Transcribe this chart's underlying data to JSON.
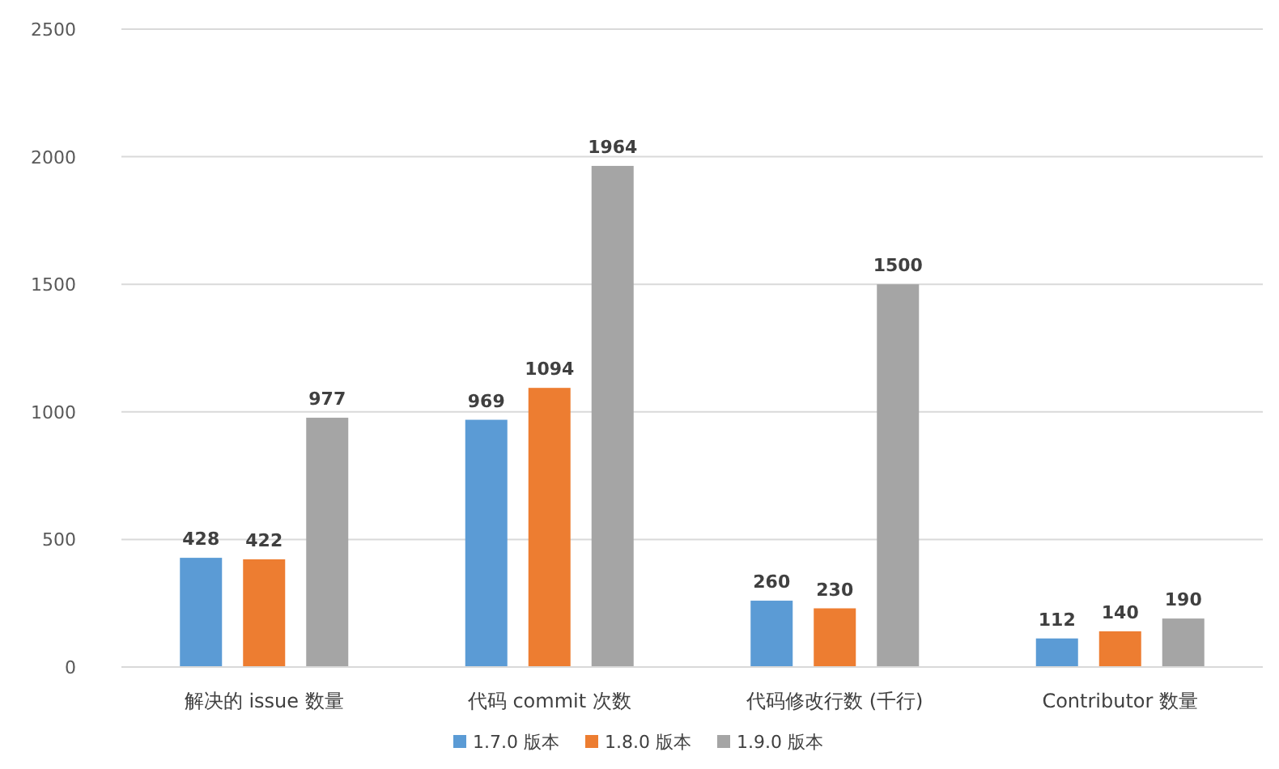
{
  "chart_data": {
    "type": "bar",
    "categories": [
      "解决的 issue 数量",
      "代码 commit 次数",
      "代码修改行数 (千行)",
      "Contributor 数量"
    ],
    "series": [
      {
        "name": "1.7.0 版本",
        "color": "#5b9bd5",
        "values": [
          428,
          969,
          260,
          112
        ]
      },
      {
        "name": "1.8.0 版本",
        "color": "#ed7d31",
        "values": [
          422,
          1094,
          230,
          140
        ]
      },
      {
        "name": "1.9.0 版本",
        "color": "#a5a5a5",
        "values": [
          977,
          1964,
          1500,
          190
        ]
      }
    ],
    "ylim": [
      0,
      2500
    ],
    "yticks": [
      0,
      500,
      1000,
      1500,
      2000,
      2500
    ],
    "grid": "y",
    "legend": "bottom",
    "data_labels": true
  }
}
